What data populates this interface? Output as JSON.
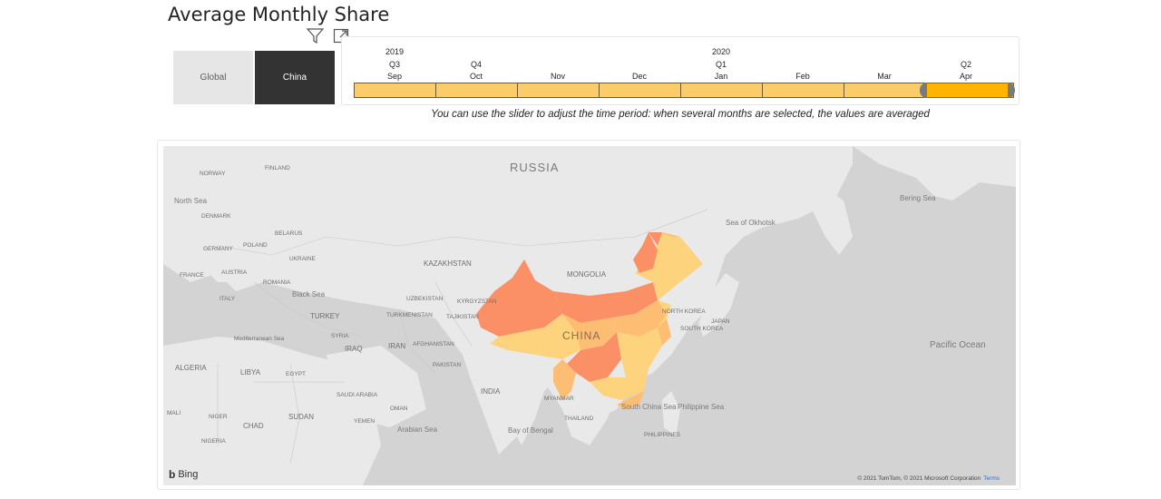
{
  "page": {
    "title": "Average Monthly Share"
  },
  "slicer": {
    "options": [
      {
        "label": "Global",
        "selected": false
      },
      {
        "label": "China",
        "selected": true
      }
    ]
  },
  "timeline": {
    "years": [
      "2019",
      "2020"
    ],
    "quarters": [
      "Q3",
      "Q4",
      "Q1",
      "Q2"
    ],
    "months": [
      "Sep",
      "Oct",
      "Nov",
      "Dec",
      "Jan",
      "Feb",
      "Mar",
      "Apr"
    ],
    "selected_month": "Apr",
    "colors": {
      "unselected": "#fccc6a",
      "selected": "#ffb400",
      "handle": "#7a7a7a"
    }
  },
  "hint": "You can use the slider to adjust the time period: when several months are selected, the values are averaged",
  "map": {
    "labels": {
      "russia": "RUSSIA",
      "china": "CHINA",
      "kazakhstan": "KAZAKHSTAN",
      "mongolia": "MONGOLIA",
      "india": "INDIA",
      "iran": "IRAN",
      "iraq": "IRAQ",
      "turkey": "TURKEY",
      "ukraine": "UKRAINE",
      "poland": "POLAND",
      "germany": "GERMANY",
      "france": "FRANCE",
      "belarus": "BELARUS",
      "norway": "NORWAY",
      "denmark": "DENMARK",
      "finland": "FINLAND",
      "romania": "ROMANIA",
      "afghanistan": "AFGHANISTAN",
      "pakistan": "PAKISTAN",
      "kyrgyzstan": "KYRGYZSTAN",
      "turkmenistan": "TURKMENISTAN",
      "tajikistan": "TAJIKISTAN",
      "japan": "JAPAN",
      "north_korea": "NORTH KOREA",
      "south_korea": "SOUTH KOREA",
      "libya": "LIBYA",
      "egypt": "EGYPT",
      "algeria": "ALGERIA",
      "saudi_arabia": "SAUDI ARABIA",
      "yemen": "YEMEN",
      "sudan": "SUDAN",
      "chad": "CHAD",
      "niger": "NIGER",
      "mali": "MALI",
      "nigeria": "NIGERIA",
      "myanmar": "MYANMAR",
      "thailand": "THAILAND",
      "philippines": "PHILIPPINES",
      "oman": "OMAN",
      "syria": "SYRIA",
      "austria": "AUSTRIA",
      "italy": "ITALY",
      "uzbekistan": "UZBEKISTAN",
      "north_sea": "North Sea",
      "black_sea": "Black Sea",
      "mediterranean": "Mediterranean Sea",
      "arabian_sea": "Arabian Sea",
      "bay_of_bengal": "Bay of Bengal",
      "south_china_sea": "South China Sea",
      "philippine_sea": "Philippine Sea",
      "sea_of_okhotsk": "Sea of Okhotsk",
      "bering_sea": "Bering Sea",
      "pacific_ocean": "Pacific Ocean"
    },
    "provider": "Bing",
    "copyright": "© 2021 TomTom, © 2021 Microsoft Corporation",
    "terms": "Terms",
    "colors": {
      "ocean": "#d4d4d4",
      "land": "#e8e8e8",
      "high": "#fb9066",
      "mid": "#fdbd73",
      "low": "#fdd37e"
    }
  }
}
